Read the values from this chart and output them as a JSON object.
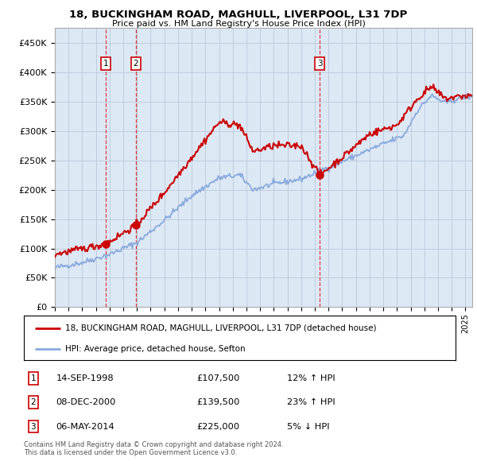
{
  "title_line1": "18, BUCKINGHAM ROAD, MAGHULL, LIVERPOOL, L31 7DP",
  "title_line2": "Price paid vs. HM Land Registry's House Price Index (HPI)",
  "background_color": "#ffffff",
  "plot_bg_color": "#dde8f5",
  "grid_color": "#b8c8d8",
  "hpi_line_color": "#88aadd",
  "price_line_color": "#cc0000",
  "transactions": [
    {
      "num": 1,
      "date": "14-SEP-1998",
      "price": 107500,
      "pct": "12%",
      "dir": "↑",
      "x_year": 1998.71
    },
    {
      "num": 2,
      "date": "08-DEC-2000",
      "price": 139500,
      "pct": "23%",
      "dir": "↑",
      "x_year": 2000.92
    },
    {
      "num": 3,
      "date": "06-MAY-2014",
      "price": 225000,
      "pct": "5%",
      "dir": "↓",
      "x_year": 2014.35
    }
  ],
  "legend_label_price": "18, BUCKINGHAM ROAD, MAGHULL, LIVERPOOL, L31 7DP (detached house)",
  "legend_label_hpi": "HPI: Average price, detached house, Sefton",
  "footnote1": "Contains HM Land Registry data © Crown copyright and database right 2024.",
  "footnote2": "This data is licensed under the Open Government Licence v3.0.",
  "ylim": [
    0,
    475000
  ],
  "yticks": [
    0,
    50000,
    100000,
    150000,
    200000,
    250000,
    300000,
    350000,
    400000,
    450000
  ],
  "ytick_labels": [
    "£0",
    "£50K",
    "£100K",
    "£150K",
    "£200K",
    "£250K",
    "£300K",
    "£350K",
    "£400K",
    "£450K"
  ],
  "xlim_start": 1995,
  "xlim_end": 2025.5
}
